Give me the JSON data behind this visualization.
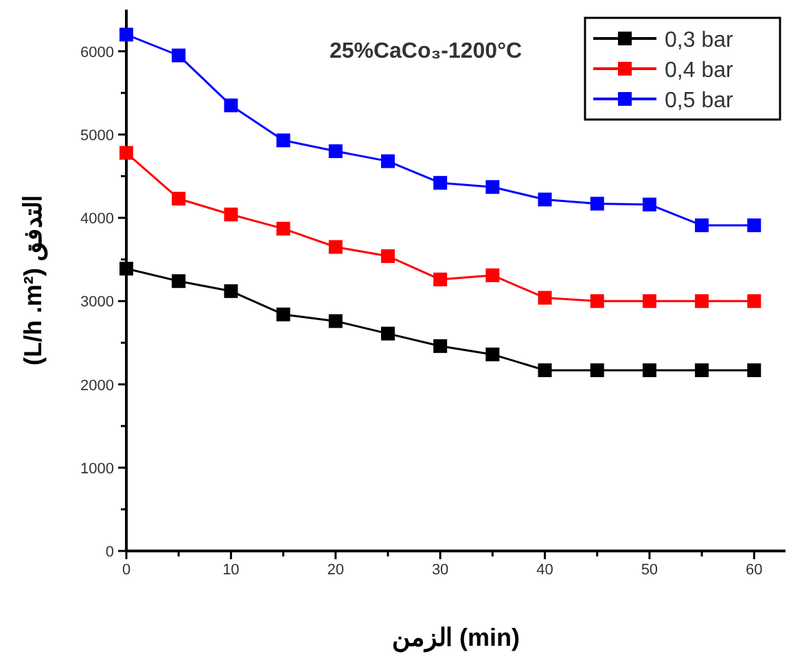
{
  "chart_data": {
    "type": "line",
    "title": "25%CaCo₃-1200°C",
    "xlabel": "الزمن (min)",
    "ylabel": "(L/h .m²) التدفق",
    "x": [
      0,
      5,
      10,
      15,
      20,
      25,
      30,
      35,
      40,
      45,
      50,
      55,
      60
    ],
    "series": [
      {
        "name": "0,3 bar",
        "color": "#000000",
        "values": [
          3390,
          3240,
          3120,
          2840,
          2760,
          2610,
          2460,
          2360,
          2170,
          2170,
          2170,
          2170,
          2170
        ]
      },
      {
        "name": "0,4 bar",
        "color": "#ff0000",
        "values": [
          4780,
          4230,
          4040,
          3870,
          3650,
          3540,
          3260,
          3310,
          3040,
          3000,
          3000,
          3000,
          3000
        ]
      },
      {
        "name": "0,5 bar",
        "color": "#0000ff",
        "values": [
          6200,
          5950,
          5350,
          4930,
          4800,
          4680,
          4420,
          4370,
          4220,
          4170,
          4160,
          3910,
          3910
        ]
      }
    ],
    "xlim": [
      0,
      63
    ],
    "ylim": [
      0,
      6500
    ],
    "xticks": [
      0,
      {
        "value": 5,
        "label": null
      },
      10,
      {
        "value": 15,
        "label": null
      },
      20,
      {
        "value": 25,
        "label": null
      },
      30,
      {
        "value": 35,
        "label": null
      },
      40,
      {
        "value": 45,
        "label": null
      },
      50,
      {
        "value": 55,
        "label": null
      },
      60
    ],
    "yticks": [
      0,
      {
        "value": 500,
        "label": null
      },
      1000,
      {
        "value": 1500,
        "label": null
      },
      2000,
      {
        "value": 2500,
        "label": null
      },
      3000,
      {
        "value": 3500,
        "label": null
      },
      4000,
      {
        "value": 4500,
        "label": null
      },
      5000,
      {
        "value": 5500,
        "label": null
      },
      6000
    ],
    "marker": "square",
    "legend": "top right",
    "grid": false
  }
}
